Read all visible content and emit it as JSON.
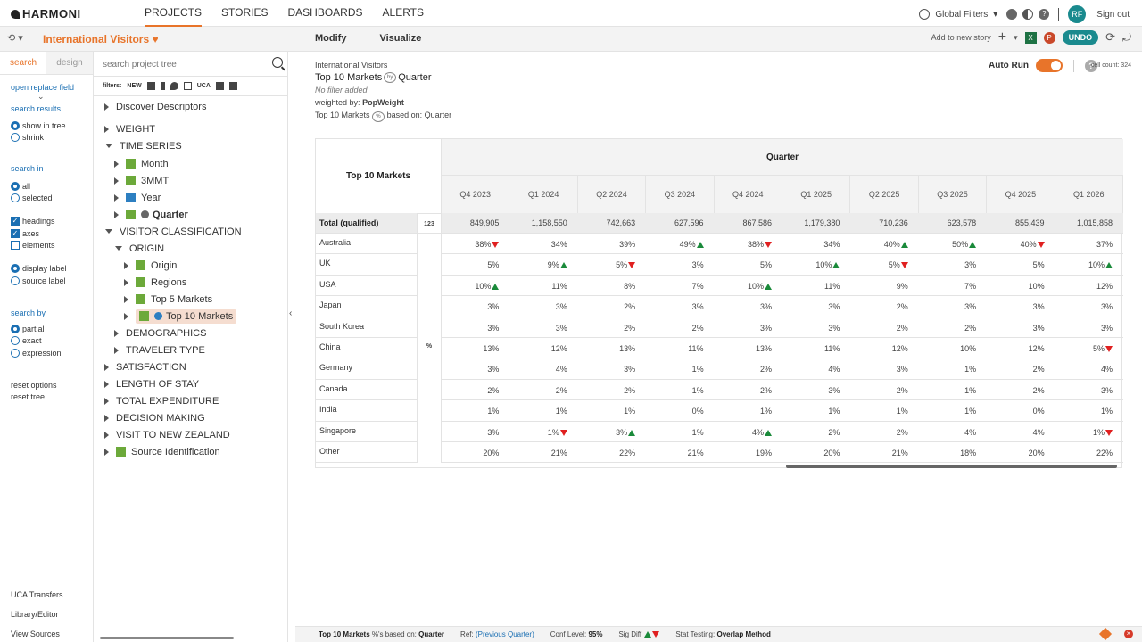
{
  "nav": {
    "logo": "HARMONI",
    "items": [
      "PROJECTS",
      "STORIES",
      "DASHBOARDS",
      "ALERTS"
    ],
    "global_filters": "Global Filters",
    "avatar": "RF",
    "sign_out": "Sign out"
  },
  "subbar": {
    "history": "⟲ ▾",
    "project_title": "International Visitors",
    "heart": "♥",
    "modify": "Modify",
    "visualize": "Visualize",
    "add_to_story": "Add to new story",
    "undo": "UNDO"
  },
  "search_panel": {
    "tab_search": "search",
    "tab_design": "design",
    "open_replace": "open replace field",
    "search_results": "search results",
    "show_in_tree": "show in tree",
    "shrink": "shrink",
    "search_in": "search in",
    "all": "all",
    "selected": "selected",
    "headings": "headings",
    "axes": "axes",
    "elements": "elements",
    "display_label": "display label",
    "source_label": "source label",
    "search_by": "search by",
    "partial": "partial",
    "exact": "exact",
    "expression": "expression",
    "reset_options": "reset options",
    "reset_tree": "reset tree",
    "uca_transfers": "UCA Transfers",
    "library_editor": "Library/Editor",
    "view_sources": "View Sources"
  },
  "tree": {
    "placeholder": "search project tree",
    "filters_label": "filters:",
    "new_label": "NEW",
    "uca_label": "UCA",
    "nodes": {
      "discover": "Discover Descriptors",
      "weight": "WEIGHT",
      "time_series": "TIME SERIES",
      "month": "Month",
      "mmt": "3MMT",
      "year": "Year",
      "quarter": "Quarter",
      "visitor_class": "VISITOR CLASSIFICATION",
      "origin_group": "ORIGIN",
      "origin": "Origin",
      "regions": "Regions",
      "top5": "Top 5 Markets",
      "top10": "Top 10 Markets",
      "demographics": "DEMOGRAPHICS",
      "traveler_type": "TRAVELER TYPE",
      "satisfaction": "SATISFACTION",
      "length_of_stay": "LENGTH OF STAY",
      "total_expenditure": "TOTAL EXPENDITURE",
      "decision_making": "DECISION MAKING",
      "visit_nz": "VISIT TO NEW ZEALAND",
      "source_id": "Source Identification"
    }
  },
  "report": {
    "project": "International Visitors",
    "title_row": "Top 10 Markets",
    "title_by": "Quarter",
    "no_filter": "No filter added",
    "weighted_by_label": "weighted by:",
    "weighted_by": "PopWeight",
    "based_row": "Top 10 Markets",
    "based_on_label": "based on:",
    "based_on": "Quarter",
    "auto_run": "Auto Run",
    "cell_count": "cell count: 324"
  },
  "table": {
    "row_header": "Top 10 Markets",
    "col_header": "Quarter",
    "columns": [
      "Q4 2023",
      "Q1 2024",
      "Q2 2024",
      "Q3 2024",
      "Q4 2024",
      "Q1 2025",
      "Q2 2025",
      "Q3 2025",
      "Q4 2025",
      "Q1 2026"
    ],
    "total_label": "Total (qualified)",
    "total_badge": "123",
    "pct_badge": "%",
    "totals": [
      "849,905",
      "1,158,550",
      "742,663",
      "627,596",
      "867,586",
      "1,179,380",
      "710,236",
      "623,578",
      "855,439",
      "1,015,858"
    ],
    "rows": [
      {
        "label": "Australia",
        "cells": [
          "38%",
          "34%",
          "39%",
          "49%",
          "38%",
          "34%",
          "40%",
          "50%",
          "40%",
          "37%"
        ],
        "sig": [
          "down",
          "",
          "",
          "up",
          "down",
          "",
          "up",
          "up",
          "down",
          ""
        ]
      },
      {
        "label": "UK",
        "cells": [
          "5%",
          "9%",
          "5%",
          "3%",
          "5%",
          "10%",
          "5%",
          "3%",
          "5%",
          "10%"
        ],
        "sig": [
          "",
          "up",
          "down",
          "",
          "",
          "up",
          "down",
          "",
          "",
          "up"
        ]
      },
      {
        "label": "USA",
        "cells": [
          "10%",
          "11%",
          "8%",
          "7%",
          "10%",
          "11%",
          "9%",
          "7%",
          "10%",
          "12%"
        ],
        "sig": [
          "up",
          "",
          "",
          "",
          "up",
          "",
          "",
          "",
          "",
          ""
        ]
      },
      {
        "label": "Japan",
        "cells": [
          "3%",
          "3%",
          "2%",
          "3%",
          "3%",
          "3%",
          "2%",
          "3%",
          "3%",
          "3%"
        ],
        "sig": [
          "",
          "",
          "",
          "",
          "",
          "",
          "",
          "",
          "",
          ""
        ]
      },
      {
        "label": "South Korea",
        "cells": [
          "3%",
          "3%",
          "2%",
          "2%",
          "3%",
          "3%",
          "2%",
          "2%",
          "3%",
          "3%"
        ],
        "sig": [
          "",
          "",
          "",
          "",
          "",
          "",
          "",
          "",
          "",
          ""
        ]
      },
      {
        "label": "China",
        "cells": [
          "13%",
          "12%",
          "13%",
          "11%",
          "13%",
          "11%",
          "12%",
          "10%",
          "12%",
          "5%"
        ],
        "sig": [
          "",
          "",
          "",
          "",
          "",
          "",
          "",
          "",
          "",
          "down"
        ]
      },
      {
        "label": "Germany",
        "cells": [
          "3%",
          "4%",
          "3%",
          "1%",
          "2%",
          "4%",
          "3%",
          "1%",
          "2%",
          "4%"
        ],
        "sig": [
          "",
          "",
          "",
          "",
          "",
          "",
          "",
          "",
          "",
          ""
        ]
      },
      {
        "label": "Canada",
        "cells": [
          "2%",
          "2%",
          "2%",
          "1%",
          "2%",
          "3%",
          "2%",
          "1%",
          "2%",
          "3%"
        ],
        "sig": [
          "",
          "",
          "",
          "",
          "",
          "",
          "",
          "",
          "",
          ""
        ]
      },
      {
        "label": "India",
        "cells": [
          "1%",
          "1%",
          "1%",
          "0%",
          "1%",
          "1%",
          "1%",
          "1%",
          "0%",
          "1%"
        ],
        "sig": [
          "",
          "",
          "",
          "",
          "",
          "",
          "",
          "",
          "",
          ""
        ]
      },
      {
        "label": "Singapore",
        "cells": [
          "3%",
          "1%",
          "3%",
          "1%",
          "4%",
          "2%",
          "2%",
          "4%",
          "4%",
          "1%"
        ],
        "sig": [
          "",
          "down",
          "up",
          "",
          "up",
          "",
          "",
          "",
          "",
          "down"
        ]
      },
      {
        "label": "Other",
        "cells": [
          "20%",
          "21%",
          "22%",
          "21%",
          "19%",
          "20%",
          "21%",
          "18%",
          "20%",
          "22%"
        ],
        "sig": [
          "",
          "",
          "",
          "",
          "",
          "",
          "",
          "",
          "",
          ""
        ]
      }
    ]
  },
  "status": {
    "row": "Top 10 Markets",
    "pct_based": "%'s based on:",
    "based": "Quarter",
    "ref_label": "Ref:",
    "ref": "(Previous Quarter)",
    "conf_label": "Conf Level:",
    "conf": "95%",
    "sig_label": "Sig Diff",
    "stat_label": "Stat Testing:",
    "stat": "Overlap Method"
  },
  "colors": {
    "accent": "#e8742a",
    "teal": "#1a8a8e",
    "up": "#1a8a3a",
    "down": "#e02020",
    "link": "#1a6fb3"
  }
}
